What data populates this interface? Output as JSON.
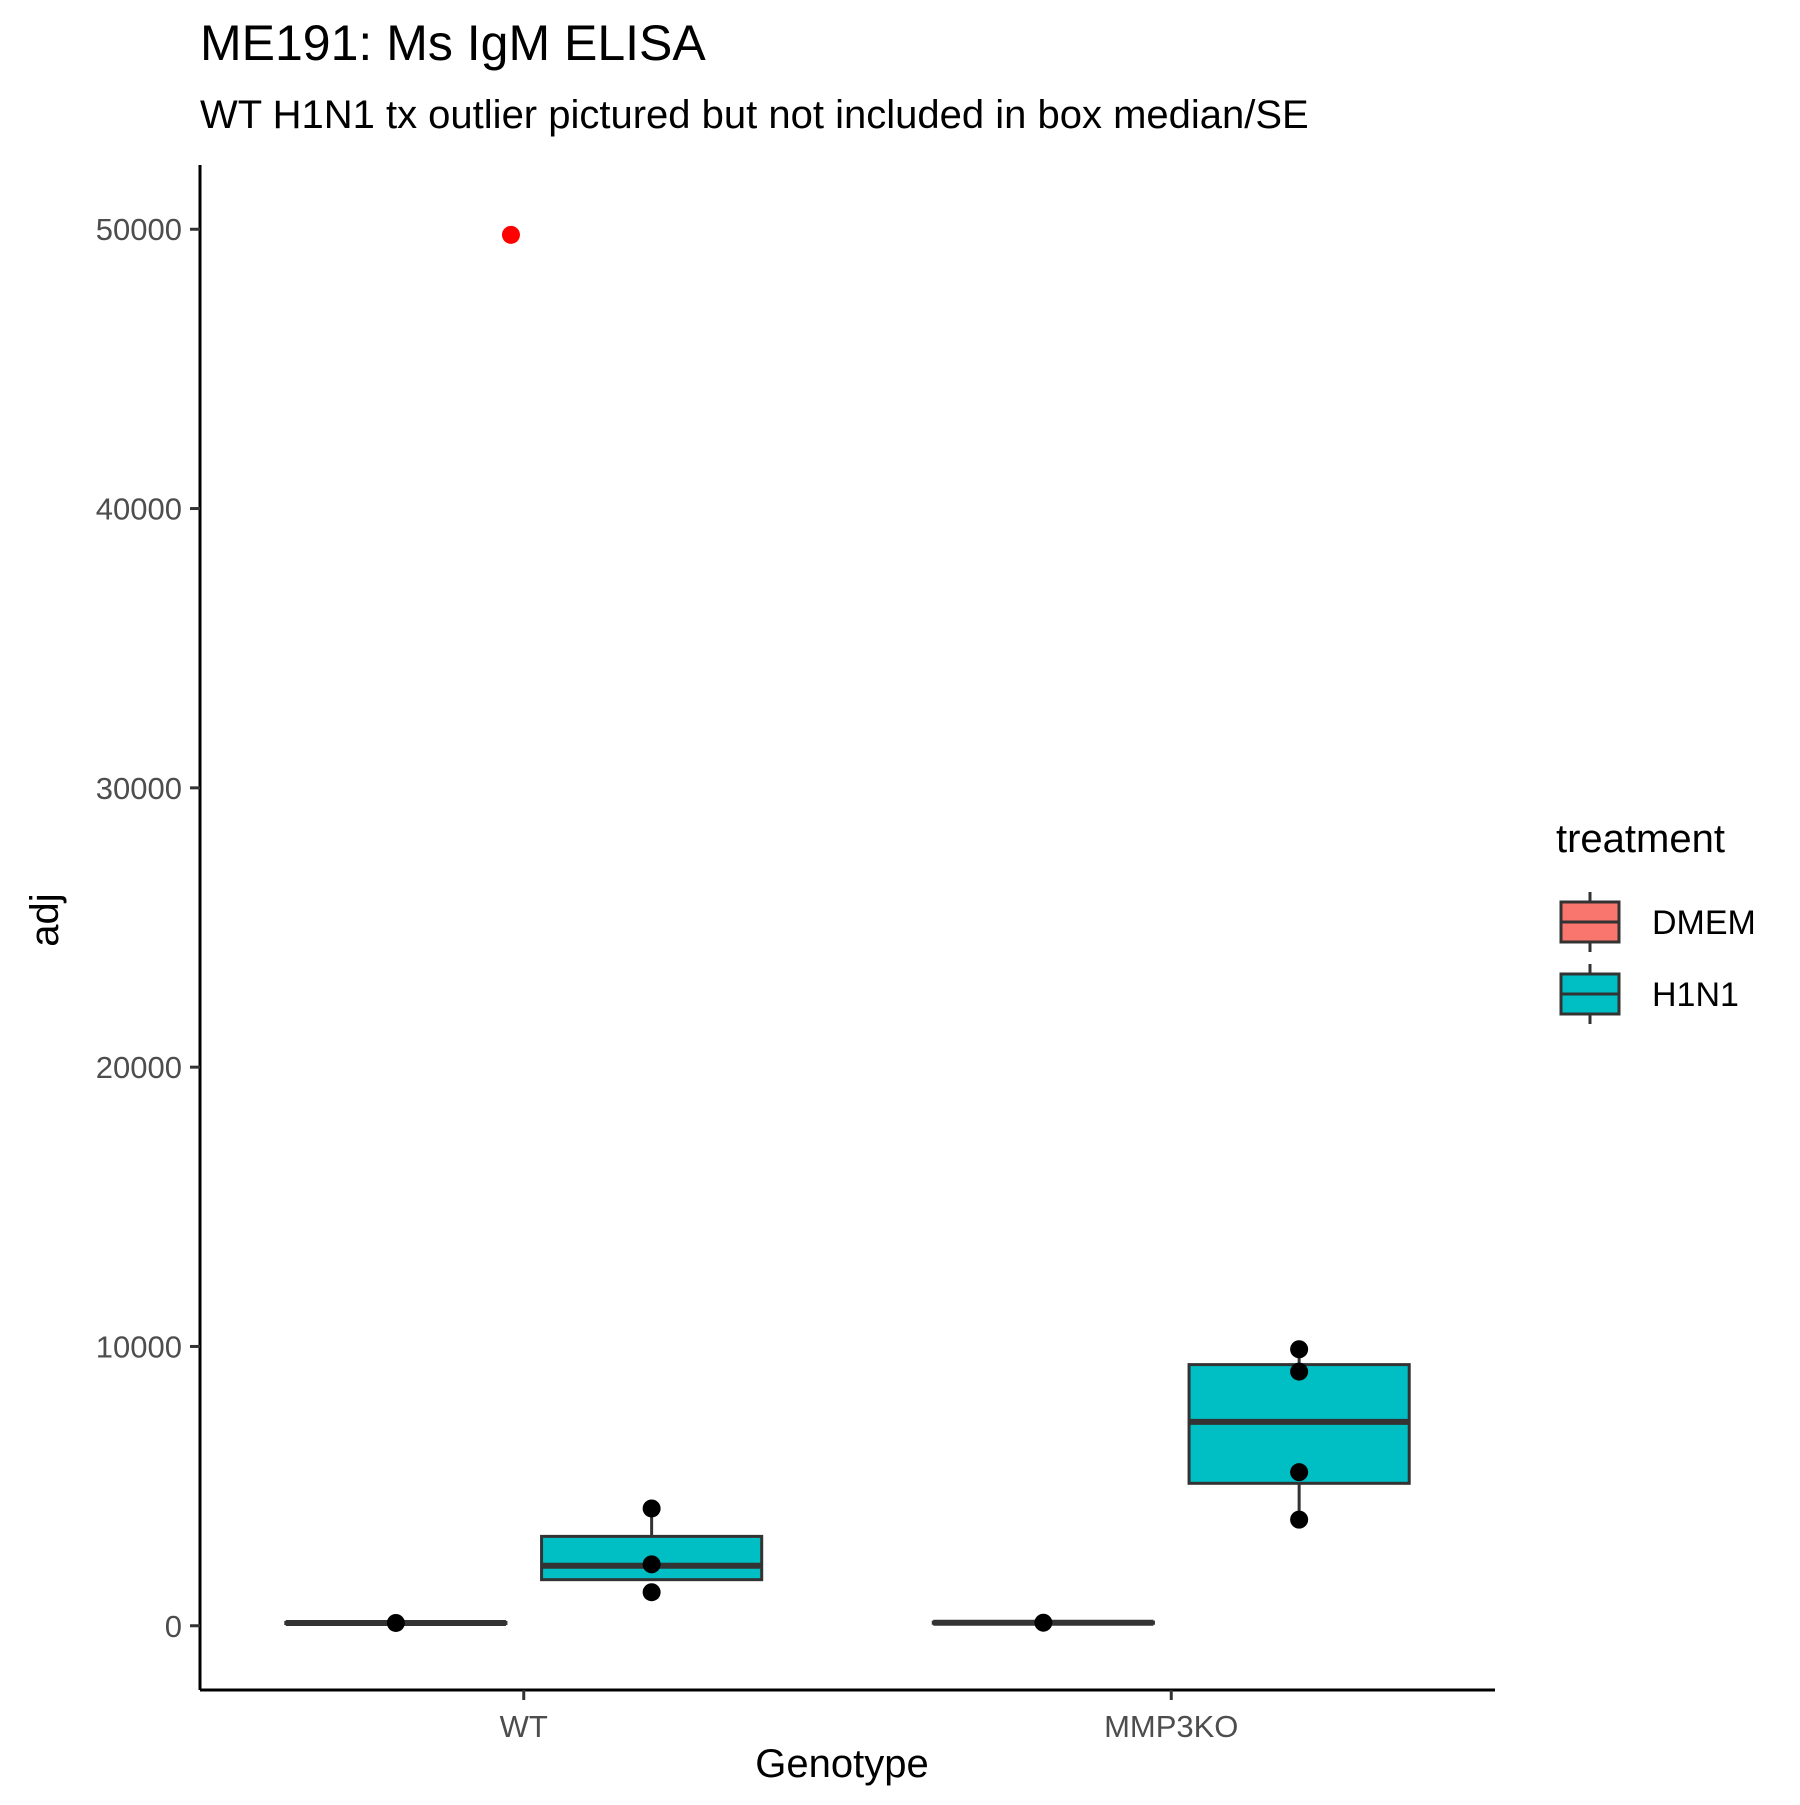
{
  "chart_data": {
    "type": "boxplot",
    "title": "ME191: Ms IgM ELISA",
    "subtitle": "WT H1N1 tx outlier pictured but not included in box median/SE",
    "xlabel": "Genotype",
    "ylabel": "adj",
    "categories": [
      "WT",
      "MMP3KO"
    ],
    "ylim": [
      -2300,
      52300
    ],
    "yticks": [
      0,
      10000,
      20000,
      30000,
      40000,
      50000
    ],
    "ytick_labels": [
      "0",
      "10000",
      "20000",
      "30000",
      "40000",
      "50000"
    ],
    "grid": false,
    "legend": {
      "title": "treatment",
      "placement": "right",
      "entries": [
        {
          "label": "DMEM",
          "color": "#F8766D"
        },
        {
          "label": "H1N1",
          "color": "#00BFC4"
        }
      ]
    },
    "series": [
      {
        "name": "DMEM",
        "color": "#F8766D",
        "boxes": [
          {
            "category": "WT",
            "q1": 80,
            "median": 100,
            "q3": 120,
            "whisker_low": 80,
            "whisker_high": 120,
            "points": [
              100
            ]
          },
          {
            "category": "MMP3KO",
            "q1": 90,
            "median": 110,
            "q3": 130,
            "whisker_low": 90,
            "whisker_high": 130,
            "points": [
              110
            ]
          }
        ]
      },
      {
        "name": "H1N1",
        "color": "#00BFC4",
        "boxes": [
          {
            "category": "WT",
            "q1": 1650,
            "median": 2150,
            "q3": 3200,
            "whisker_low": 1650,
            "whisker_high": 4200,
            "points": [
              1200,
              2200,
              4200
            ]
          },
          {
            "category": "MMP3KO",
            "q1": 5100,
            "median": 7300,
            "q3": 9350,
            "whisker_low": 3800,
            "whisker_high": 9900,
            "points": [
              3800,
              5500,
              9100,
              9900
            ]
          }
        ]
      }
    ],
    "outliers": [
      {
        "category": "WT",
        "series": "H1N1",
        "value": 49800,
        "color": "#FF0000"
      }
    ]
  }
}
